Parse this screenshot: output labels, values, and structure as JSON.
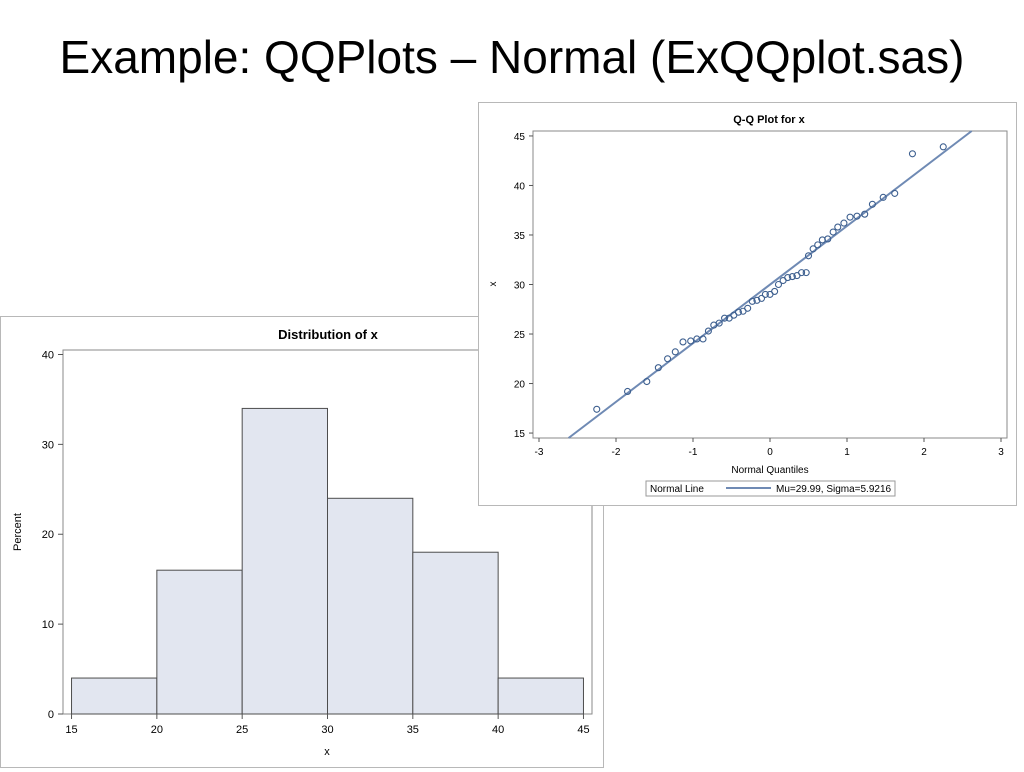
{
  "slide": {
    "title": "Example: QQPlots – Normal (ExQQplot.sas)"
  },
  "chart_data": [
    {
      "type": "bar",
      "title": "Distribution of x",
      "xlabel": "x",
      "ylabel": "Percent",
      "bin_edges": [
        15,
        20,
        25,
        30,
        35,
        40,
        45
      ],
      "values": [
        4,
        16,
        34,
        24,
        18,
        4
      ],
      "xticks": [
        15,
        20,
        25,
        30,
        35,
        40,
        45
      ],
      "yticks": [
        0,
        10,
        20,
        30,
        40
      ],
      "xlim": [
        14.5,
        45.5
      ],
      "ylim": [
        0,
        40.5
      ],
      "colors": {
        "bar_fill": "#e2e6f0",
        "bar_edge": "#4d4d4d"
      }
    },
    {
      "type": "scatter",
      "title": "Q-Q Plot for x",
      "xlabel": "Normal Quantiles",
      "ylabel": "x",
      "xticks": [
        -3,
        -2,
        -1,
        0,
        1,
        2,
        3
      ],
      "yticks": [
        15,
        20,
        25,
        30,
        35,
        40,
        45
      ],
      "xlim": [
        -3,
        3
      ],
      "ylim": [
        14.5,
        45.5
      ],
      "points": [
        [
          -2.25,
          17.4
        ],
        [
          -1.85,
          19.2
        ],
        [
          -1.6,
          20.2
        ],
        [
          -1.45,
          21.6
        ],
        [
          -1.33,
          22.5
        ],
        [
          -1.23,
          23.2
        ],
        [
          -1.13,
          24.2
        ],
        [
          -1.03,
          24.3
        ],
        [
          -0.95,
          24.5
        ],
        [
          -0.87,
          24.5
        ],
        [
          -0.8,
          25.3
        ],
        [
          -0.73,
          25.9
        ],
        [
          -0.66,
          26.1
        ],
        [
          -0.59,
          26.6
        ],
        [
          -0.53,
          26.6
        ],
        [
          -0.47,
          26.9
        ],
        [
          -0.41,
          27.2
        ],
        [
          -0.35,
          27.3
        ],
        [
          -0.29,
          27.6
        ],
        [
          -0.23,
          28.3
        ],
        [
          -0.17,
          28.4
        ],
        [
          -0.11,
          28.6
        ],
        [
          -0.06,
          29.0
        ],
        [
          0.0,
          29.0
        ],
        [
          0.06,
          29.3
        ],
        [
          0.11,
          30.0
        ],
        [
          0.17,
          30.4
        ],
        [
          0.23,
          30.7
        ],
        [
          0.29,
          30.8
        ],
        [
          0.35,
          30.9
        ],
        [
          0.41,
          31.2
        ],
        [
          0.47,
          31.2
        ],
        [
          0.5,
          32.9
        ],
        [
          0.56,
          33.6
        ],
        [
          0.62,
          34.0
        ],
        [
          0.68,
          34.5
        ],
        [
          0.75,
          34.6
        ],
        [
          0.82,
          35.3
        ],
        [
          0.88,
          35.8
        ],
        [
          0.96,
          36.2
        ],
        [
          1.04,
          36.8
        ],
        [
          1.13,
          36.9
        ],
        [
          1.23,
          37.1
        ],
        [
          1.33,
          38.1
        ],
        [
          1.47,
          38.8
        ],
        [
          1.62,
          39.2
        ],
        [
          1.85,
          43.2
        ],
        [
          2.25,
          43.9
        ]
      ],
      "reference_line": {
        "mu": 29.99,
        "sigma": 5.9216
      },
      "legend": {
        "title": "Normal Line",
        "entry": "Mu=29.99, Sigma=5.9216",
        "position": "bottom"
      },
      "colors": {
        "marker": "#3d5f8f",
        "line": "#6f8ab4"
      }
    }
  ]
}
